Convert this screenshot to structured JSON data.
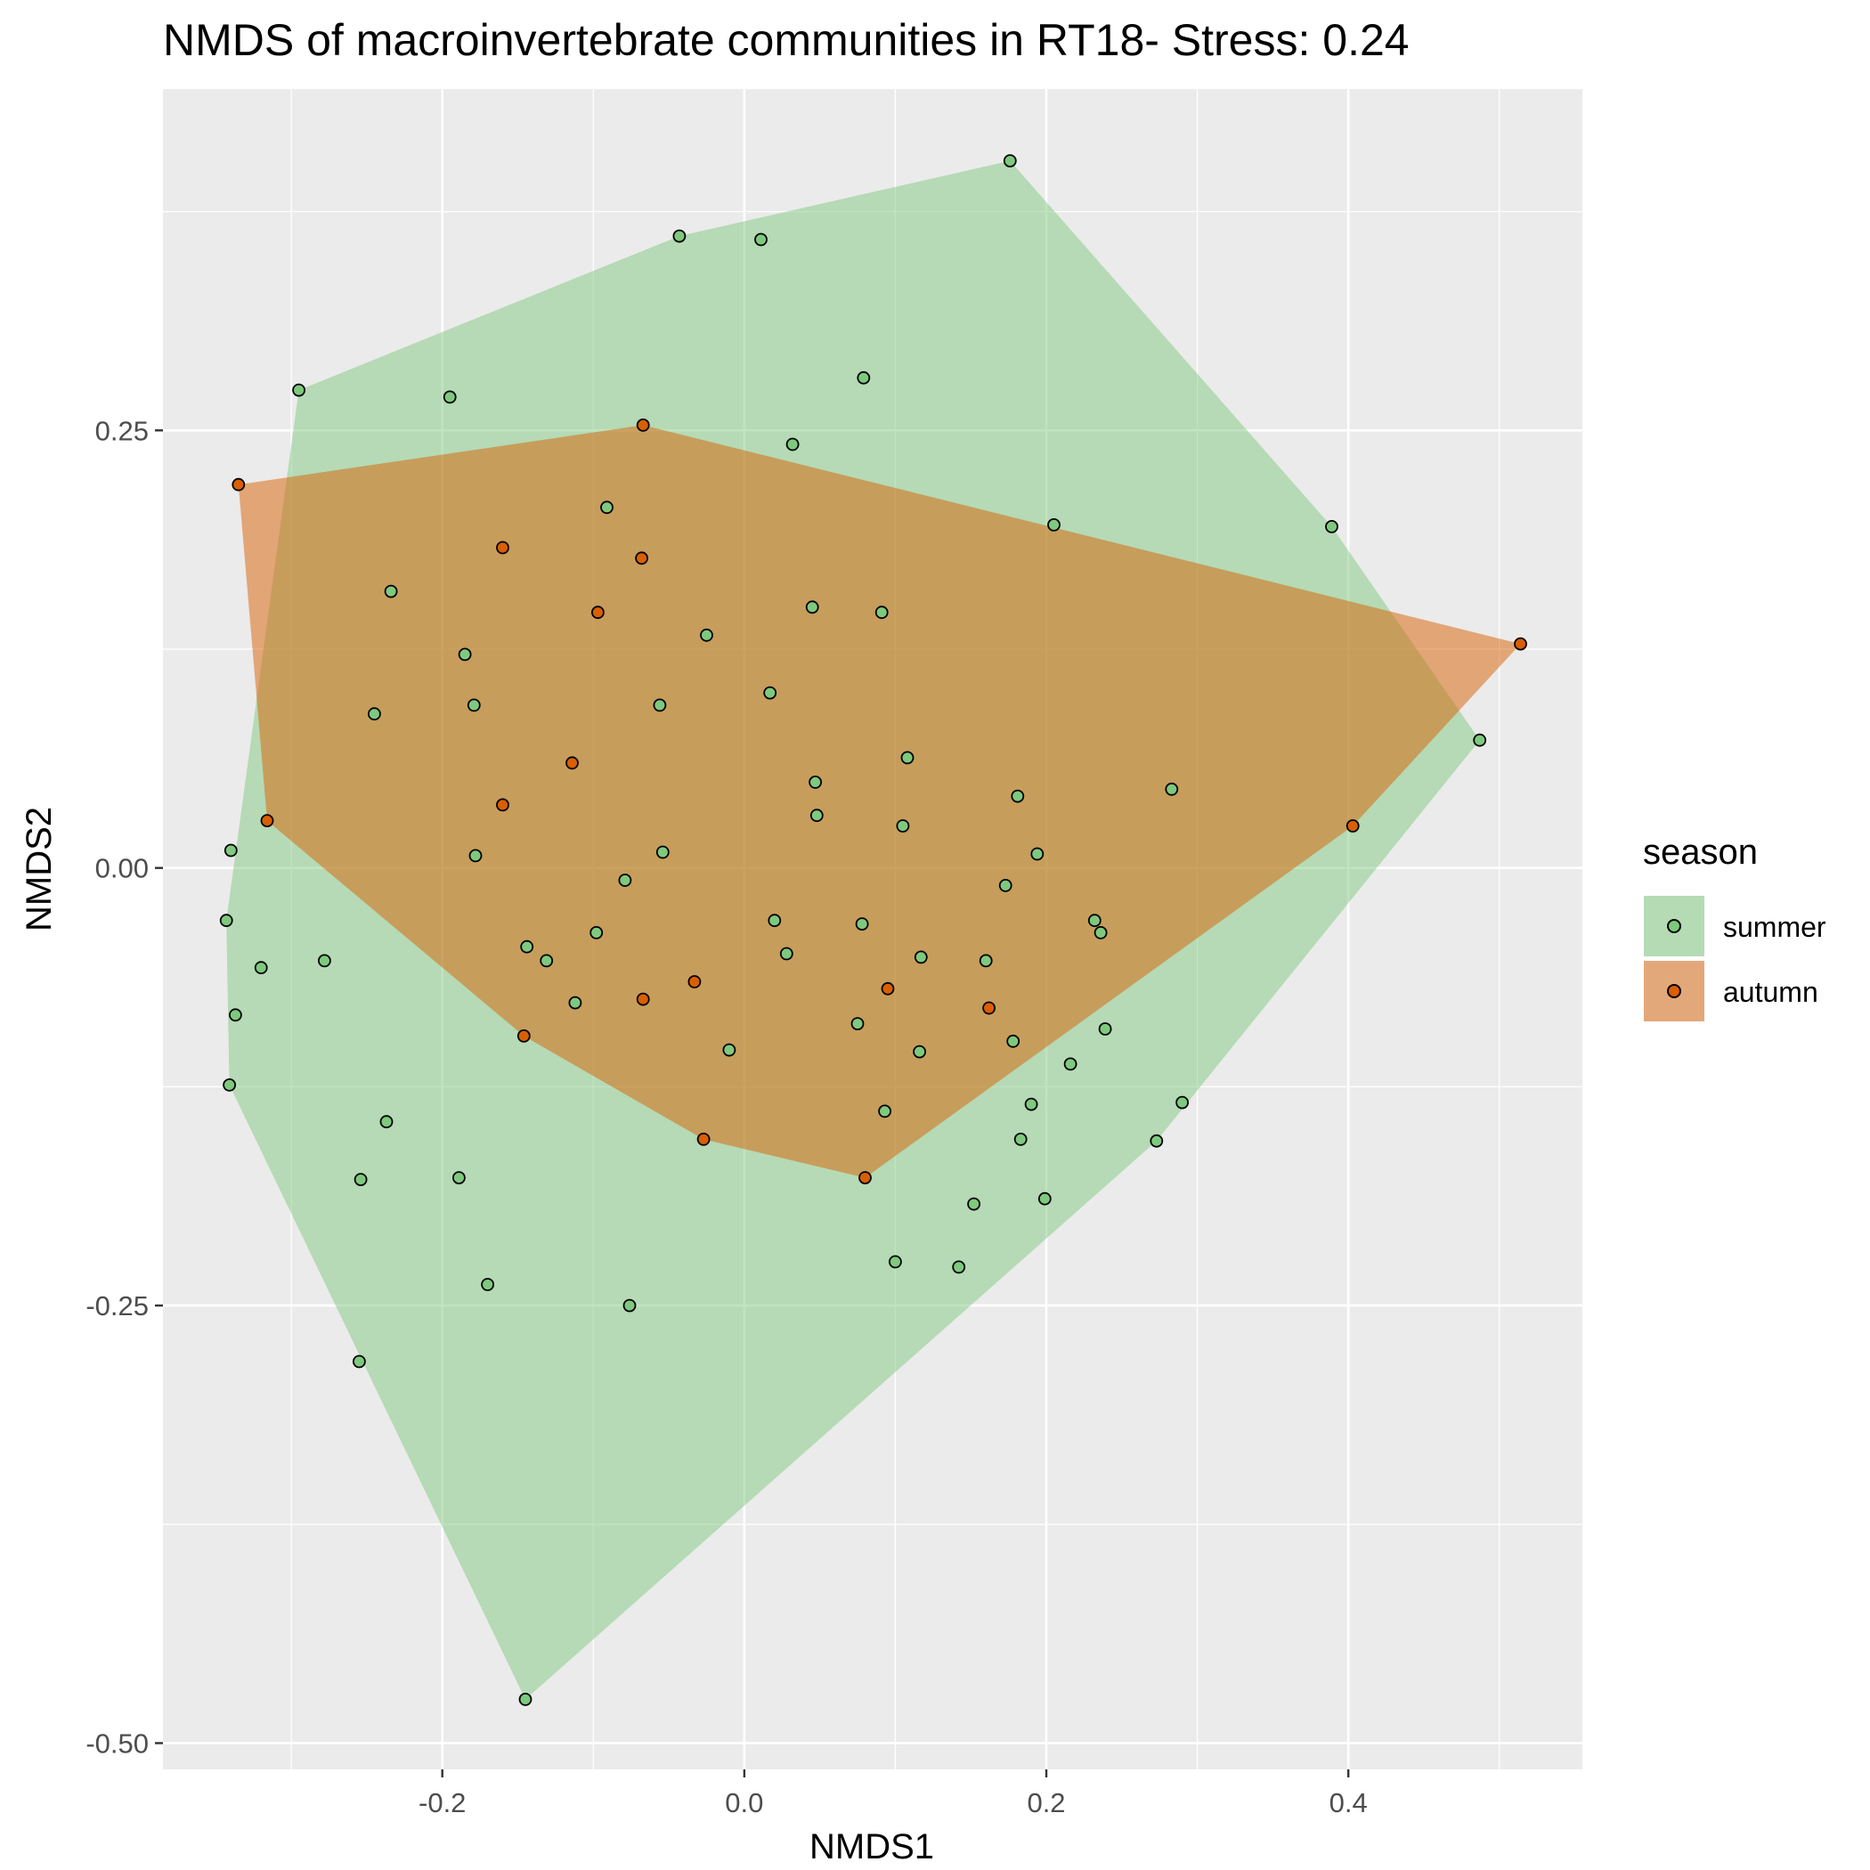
{
  "chart_data": {
    "type": "scatter",
    "title": "NMDS of macroinvertebrate communities in RT18- Stress: 0.24",
    "xlabel": "NMDS1",
    "ylabel": "NMDS2",
    "xlim": [
      -0.385,
      0.555
    ],
    "ylim": [
      -0.515,
      0.445
    ],
    "x_ticks": [
      -0.2,
      0.0,
      0.2,
      0.4
    ],
    "x_tick_labels": [
      "-0.2",
      "0.0",
      "0.2",
      "0.4"
    ],
    "y_ticks": [
      -0.5,
      -0.25,
      0.0,
      0.25
    ],
    "y_tick_labels": [
      "-0.50",
      "-0.25",
      "0.00",
      "0.25"
    ],
    "grid": true,
    "legend": {
      "title": "season",
      "position": "right",
      "entries": [
        "summer",
        "autumn"
      ]
    },
    "colors": {
      "panel_background": "#ebebeb",
      "grid": "#ffffff",
      "summer_fill": "#b5dbb5",
      "summer_point": "#7fc97f",
      "autumn_fill": "#c9995a",
      "autumn_point": "#d95f02",
      "autumn_hull_outside_summer": "#e2a87a",
      "point_outline": "#000000"
    },
    "series": [
      {
        "name": "summer",
        "points": [
          [
            0.176,
            0.404
          ],
          [
            -0.043,
            0.361
          ],
          [
            0.011,
            0.359
          ],
          [
            -0.295,
            0.273
          ],
          [
            -0.195,
            0.269
          ],
          [
            0.079,
            0.28
          ],
          [
            0.032,
            0.242
          ],
          [
            -0.091,
            0.206
          ],
          [
            0.205,
            0.196
          ],
          [
            0.389,
            0.195
          ],
          [
            -0.234,
            0.158
          ],
          [
            0.045,
            0.149
          ],
          [
            0.091,
            0.146
          ],
          [
            -0.025,
            0.133
          ],
          [
            -0.185,
            0.122
          ],
          [
            0.017,
            0.1
          ],
          [
            -0.179,
            0.093
          ],
          [
            -0.056,
            0.093
          ],
          [
            -0.245,
            0.088
          ],
          [
            0.487,
            0.073
          ],
          [
            0.108,
            0.063
          ],
          [
            0.047,
            0.049
          ],
          [
            0.181,
            0.041
          ],
          [
            0.283,
            0.045
          ],
          [
            0.048,
            0.03
          ],
          [
            0.105,
            0.024
          ],
          [
            -0.34,
            0.01
          ],
          [
            -0.178,
            0.007
          ],
          [
            -0.054,
            0.009
          ],
          [
            0.194,
            0.008
          ],
          [
            -0.079,
            -0.007
          ],
          [
            0.173,
            -0.01
          ],
          [
            -0.343,
            -0.03
          ],
          [
            0.02,
            -0.03
          ],
          [
            0.078,
            -0.032
          ],
          [
            0.232,
            -0.03
          ],
          [
            0.236,
            -0.037
          ],
          [
            -0.098,
            -0.037
          ],
          [
            -0.144,
            -0.045
          ],
          [
            -0.131,
            -0.053
          ],
          [
            -0.278,
            -0.053
          ],
          [
            0.028,
            -0.049
          ],
          [
            0.117,
            -0.051
          ],
          [
            0.16,
            -0.053
          ],
          [
            -0.32,
            -0.057
          ],
          [
            -0.112,
            -0.077
          ],
          [
            -0.337,
            -0.084
          ],
          [
            0.075,
            -0.089
          ],
          [
            0.178,
            -0.099
          ],
          [
            -0.01,
            -0.104
          ],
          [
            0.116,
            -0.105
          ],
          [
            0.239,
            -0.092
          ],
          [
            0.216,
            -0.112
          ],
          [
            -0.341,
            -0.124
          ],
          [
            0.19,
            -0.135
          ],
          [
            0.29,
            -0.134
          ],
          [
            0.093,
            -0.139
          ],
          [
            -0.237,
            -0.145
          ],
          [
            0.183,
            -0.155
          ],
          [
            0.273,
            -0.156
          ],
          [
            -0.254,
            -0.178
          ],
          [
            -0.189,
            -0.177
          ],
          [
            0.199,
            -0.189
          ],
          [
            0.152,
            -0.192
          ],
          [
            0.1,
            -0.225
          ],
          [
            0.142,
            -0.228
          ],
          [
            -0.17,
            -0.238
          ],
          [
            -0.076,
            -0.25
          ],
          [
            -0.255,
            -0.282
          ],
          [
            -0.145,
            -0.475
          ]
        ]
      },
      {
        "name": "autumn",
        "points": [
          [
            -0.067,
            0.253
          ],
          [
            -0.335,
            0.219
          ],
          [
            -0.16,
            0.183
          ],
          [
            -0.068,
            0.177
          ],
          [
            -0.097,
            0.146
          ],
          [
            0.514,
            0.128
          ],
          [
            -0.114,
            0.06
          ],
          [
            -0.16,
            0.036
          ],
          [
            -0.316,
            0.027
          ],
          [
            0.403,
            0.024
          ],
          [
            -0.033,
            -0.065
          ],
          [
            0.095,
            -0.069
          ],
          [
            -0.067,
            -0.075
          ],
          [
            0.162,
            -0.08
          ],
          [
            -0.146,
            -0.096
          ],
          [
            -0.027,
            -0.155
          ],
          [
            0.08,
            -0.177
          ]
        ]
      }
    ],
    "hulls": {
      "summer": [
        [
          0.176,
          0.404
        ],
        [
          0.389,
          0.195
        ],
        [
          0.487,
          0.073
        ],
        [
          0.273,
          -0.156
        ],
        [
          -0.145,
          -0.475
        ],
        [
          -0.341,
          -0.124
        ],
        [
          -0.343,
          -0.03
        ],
        [
          -0.295,
          0.273
        ],
        [
          -0.043,
          0.361
        ]
      ],
      "autumn": [
        [
          -0.067,
          0.253
        ],
        [
          0.514,
          0.128
        ],
        [
          0.403,
          0.024
        ],
        [
          0.08,
          -0.177
        ],
        [
          -0.027,
          -0.155
        ],
        [
          -0.146,
          -0.096
        ],
        [
          -0.316,
          0.027
        ],
        [
          -0.335,
          0.219
        ]
      ]
    }
  }
}
